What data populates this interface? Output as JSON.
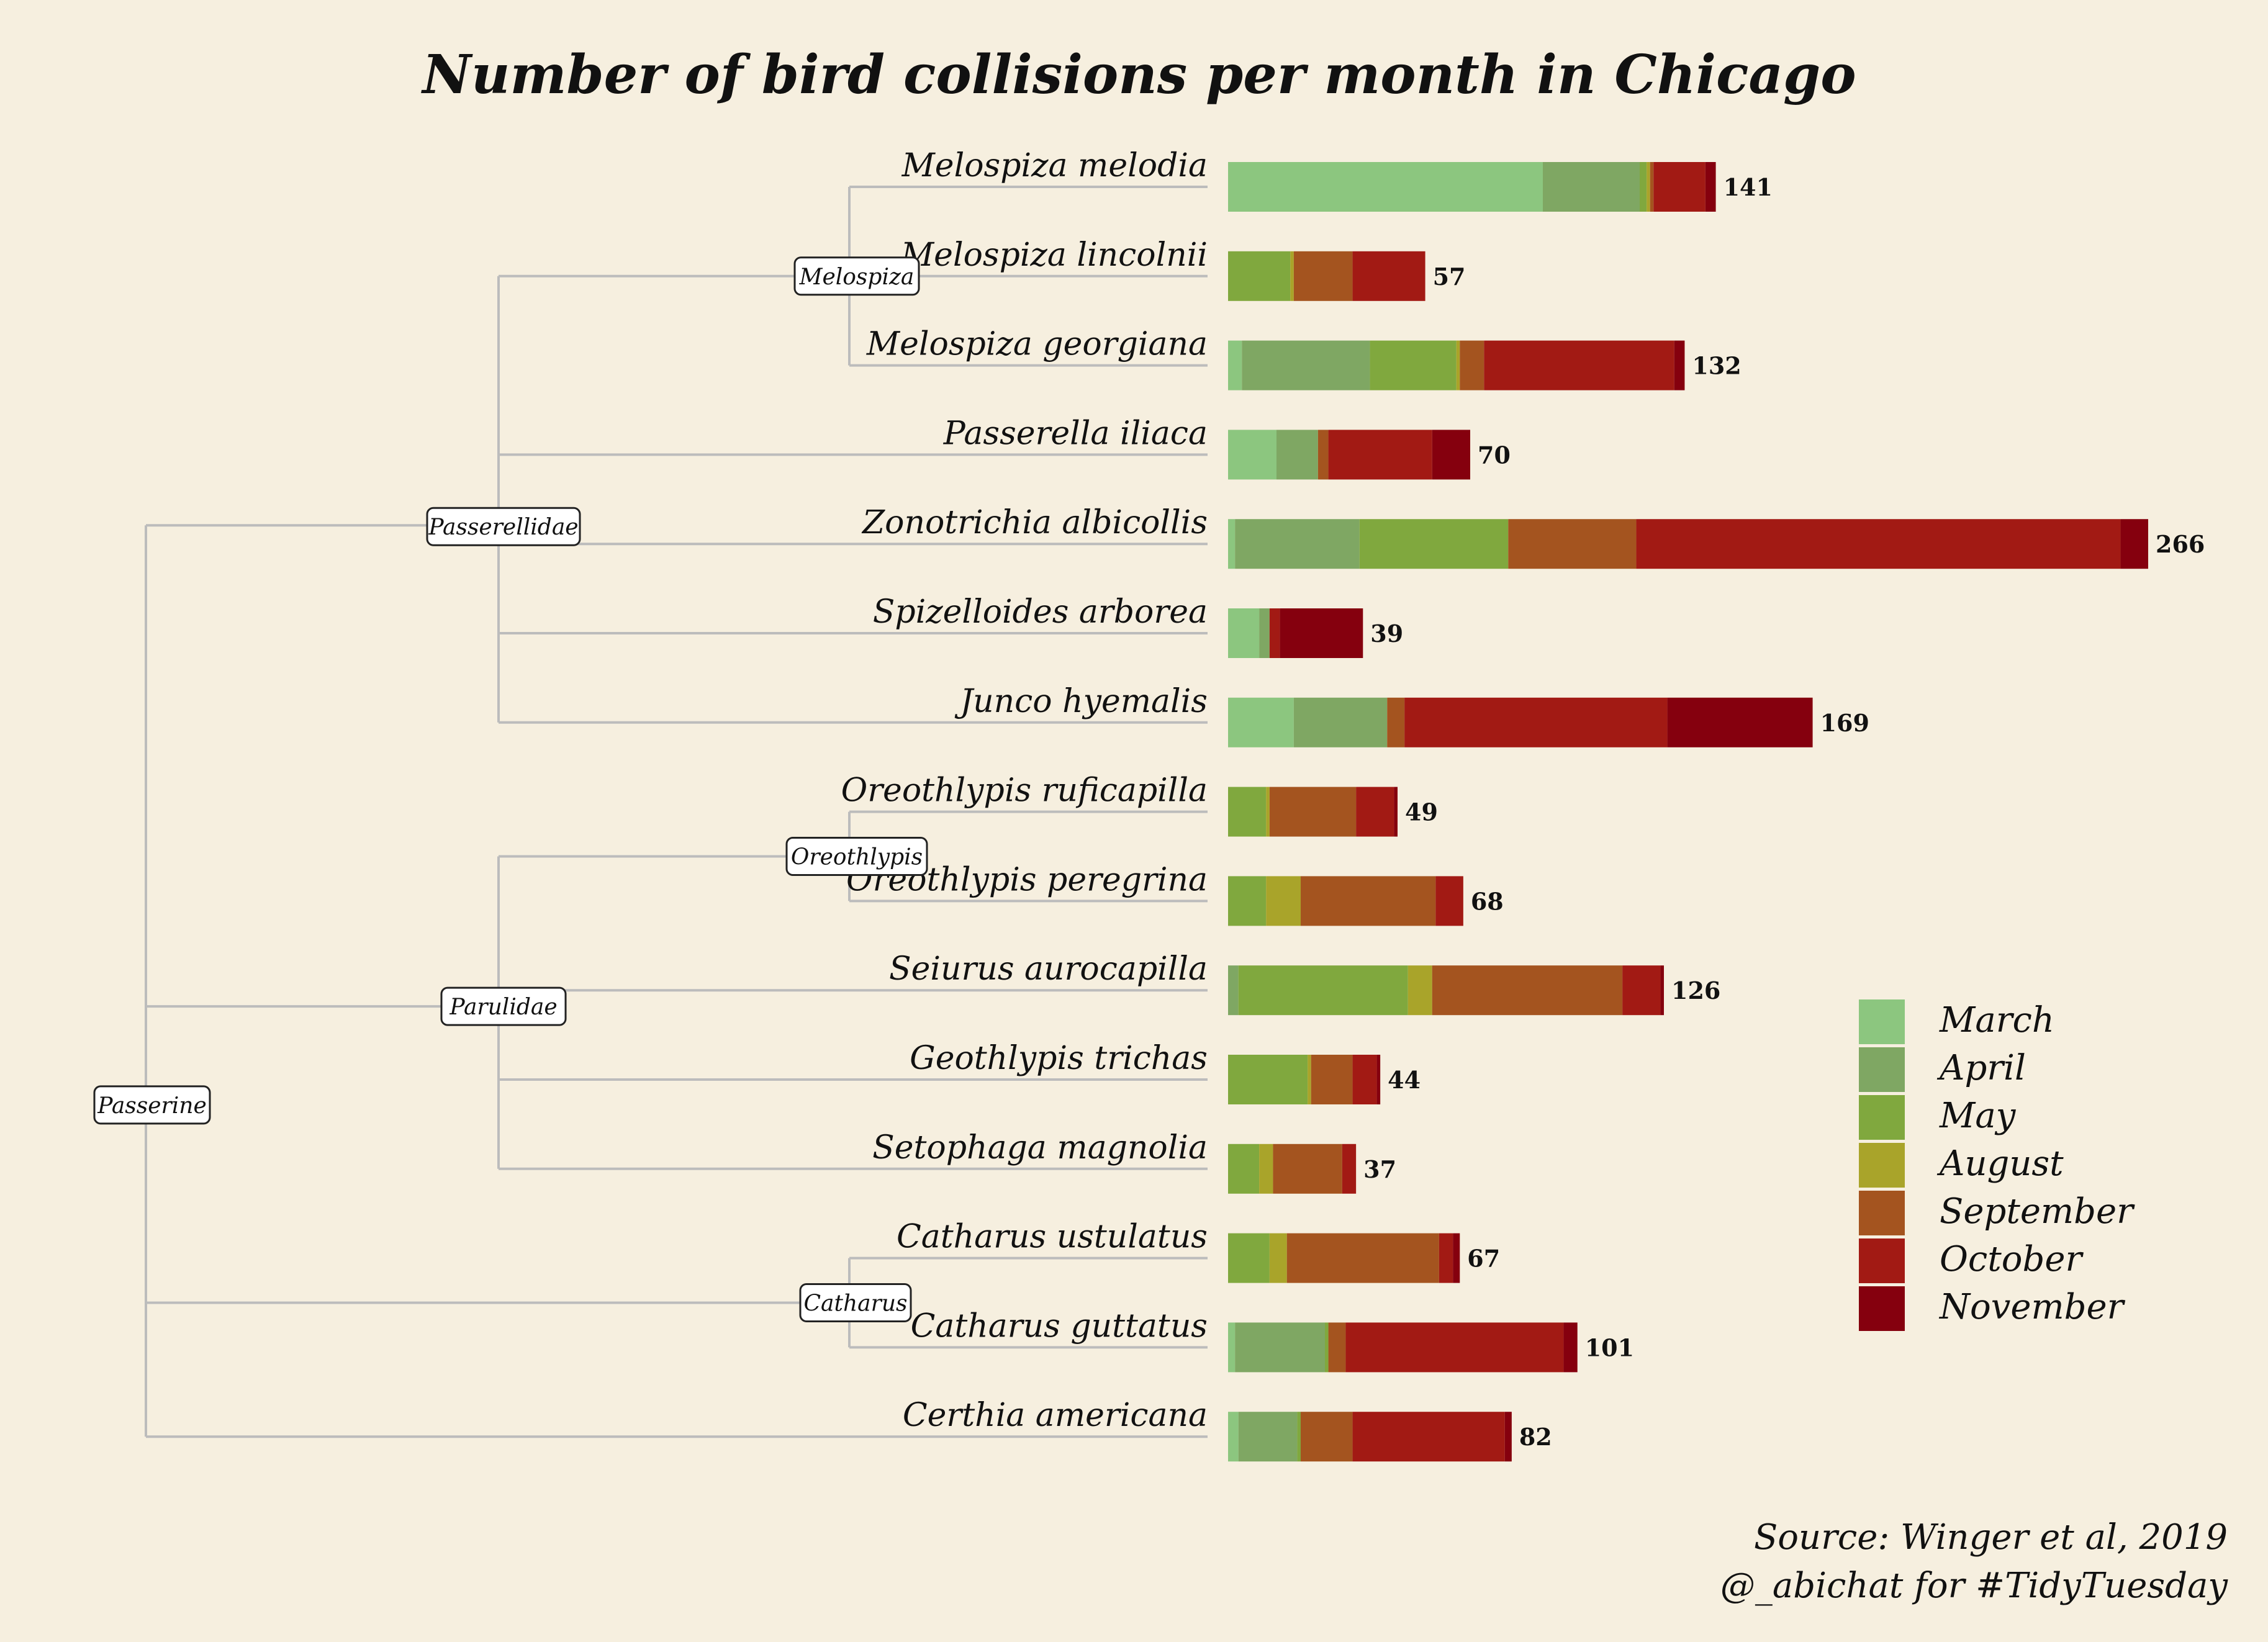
{
  "chart_data": {
    "type": "bar",
    "orientation": "horizontal",
    "stacked": true,
    "title": "Number of bird collisions per month in Chicago",
    "source_line1": "Source: Winger et al, 2019",
    "source_line2": "@_abichat for #TidyTuesday",
    "legend_position": "right",
    "grid": false,
    "xlim": [
      0,
      266
    ],
    "months": [
      "March",
      "April",
      "May",
      "August",
      "September",
      "October",
      "November"
    ],
    "colors": [
      "#8cc67f",
      "#7fa763",
      "#80a83e",
      "#a9a42a",
      "#a4541f",
      "#a21a14",
      "#85000e"
    ],
    "species": [
      {
        "name": "Melospiza melodia",
        "total": 141,
        "values": [
          91,
          28,
          2,
          1,
          1,
          15,
          3
        ]
      },
      {
        "name": "Melospiza lincolnii",
        "total": 57,
        "values": [
          0,
          0,
          18,
          1,
          17,
          21,
          0
        ]
      },
      {
        "name": "Melospiza georgiana",
        "total": 132,
        "values": [
          4,
          37,
          25,
          1,
          7,
          55,
          3
        ]
      },
      {
        "name": "Passerella iliaca",
        "total": 70,
        "values": [
          14,
          12,
          0,
          0,
          3,
          30,
          11
        ]
      },
      {
        "name": "Zonotrichia albicollis",
        "total": 266,
        "values": [
          2,
          36,
          43,
          0,
          37,
          140,
          8
        ]
      },
      {
        "name": "Spizelloides arborea",
        "total": 39,
        "values": [
          9,
          3,
          0,
          0,
          0,
          3,
          24
        ]
      },
      {
        "name": "Junco hyemalis",
        "total": 169,
        "values": [
          19,
          27,
          0,
          0,
          5,
          76,
          42
        ]
      },
      {
        "name": "Oreothlypis ruficapilla",
        "total": 49,
        "values": [
          0,
          0,
          11,
          1,
          25,
          11,
          1
        ]
      },
      {
        "name": "Oreothlypis peregrina",
        "total": 68,
        "values": [
          0,
          0,
          11,
          10,
          39,
          8,
          0
        ]
      },
      {
        "name": "Seiurus aurocapilla",
        "total": 126,
        "values": [
          0,
          3,
          49,
          7,
          55,
          11,
          1
        ]
      },
      {
        "name": "Geothlypis trichas",
        "total": 44,
        "values": [
          0,
          0,
          23,
          1,
          12,
          7,
          1
        ]
      },
      {
        "name": "Setophaga magnolia",
        "total": 37,
        "values": [
          0,
          0,
          9,
          4,
          20,
          4,
          0
        ]
      },
      {
        "name": "Catharus ustulatus",
        "total": 67,
        "values": [
          0,
          0,
          12,
          5,
          44,
          4,
          2
        ]
      },
      {
        "name": "Catharus guttatus",
        "total": 101,
        "values": [
          2,
          26,
          1,
          0,
          5,
          63,
          4
        ]
      },
      {
        "name": "Certhia americana",
        "total": 82,
        "values": [
          3,
          17,
          1,
          0,
          15,
          44,
          2
        ]
      }
    ],
    "tree_nodes": [
      "Passerine",
      "Passerellidae",
      "Parulidae",
      "Melospiza",
      "Oreothlypis",
      "Catharus"
    ]
  }
}
